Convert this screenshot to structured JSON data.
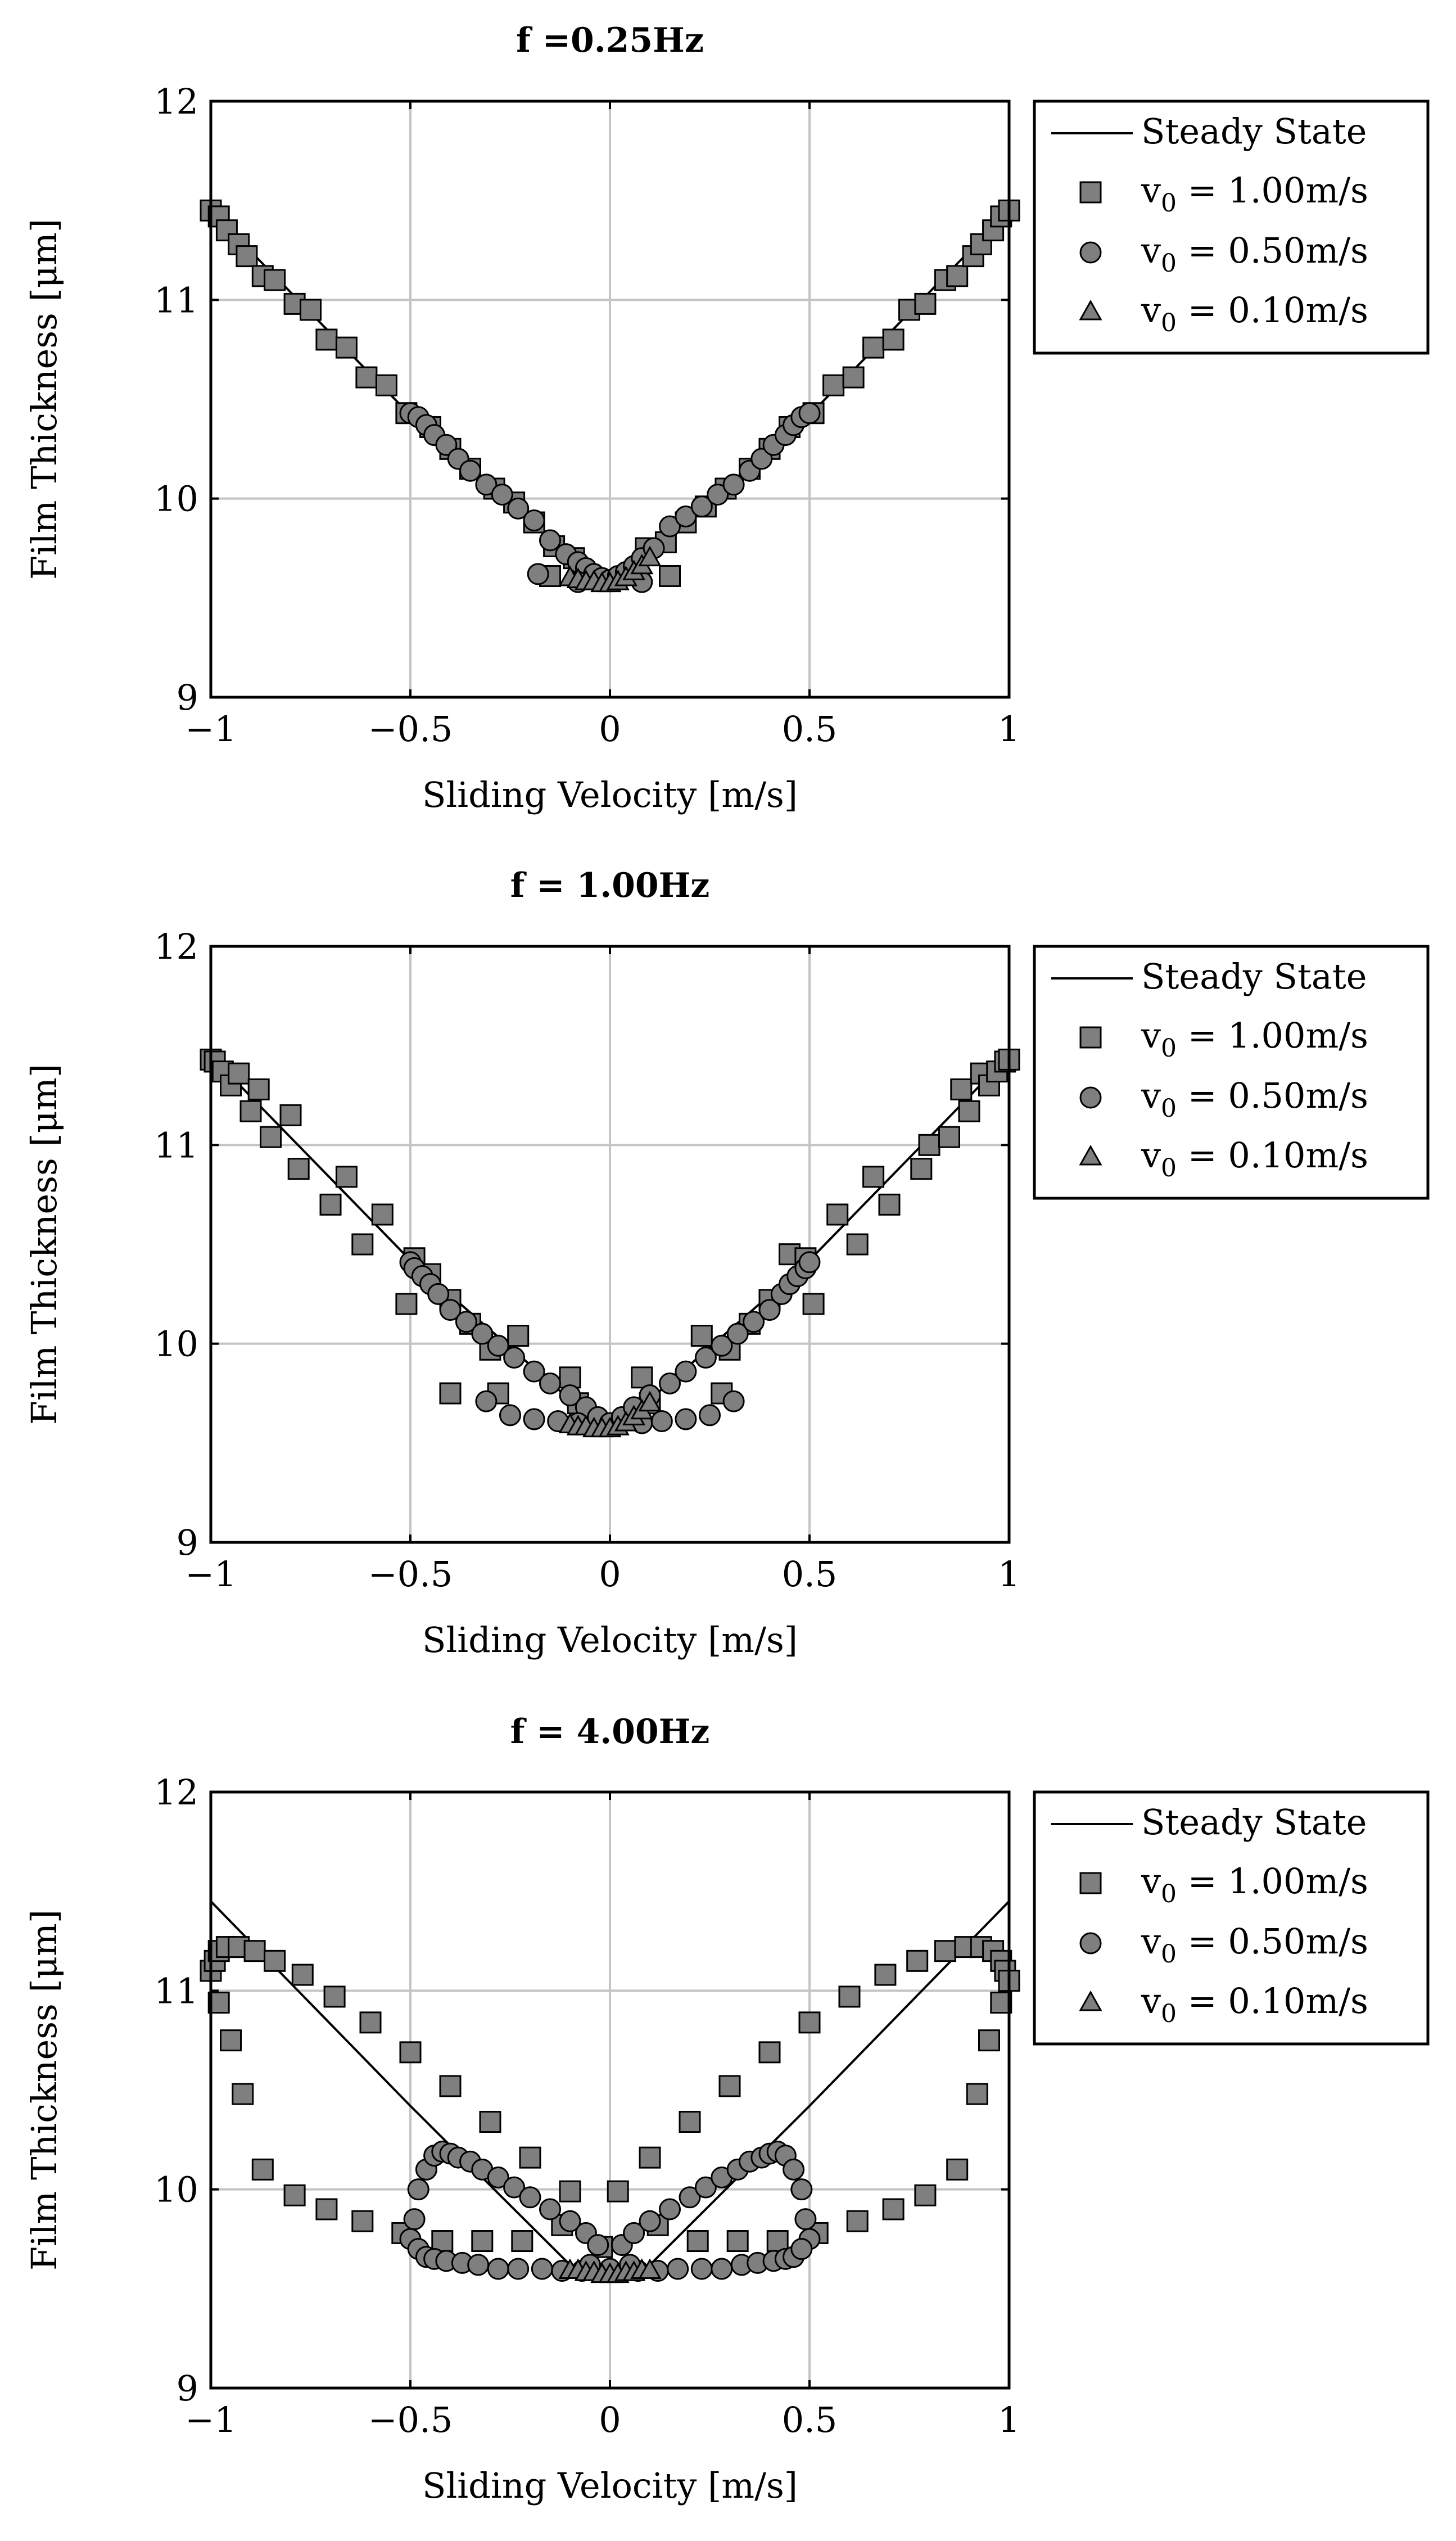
{
  "chart_data": [
    {
      "type": "scatter",
      "title": "f =0.25Hz",
      "xlabel": "Sliding Velocity [m/s]",
      "ylabel": "Film Thickness [μm]",
      "xlim": [
        -1,
        1
      ],
      "ylim": [
        9,
        12
      ],
      "xticks": [
        -1,
        -0.5,
        0,
        0.5,
        1
      ],
      "xtick_labels": [
        "−1",
        "−0.5",
        "0",
        "0.5",
        "1"
      ],
      "yticks": [
        9,
        10,
        11,
        12
      ],
      "ytick_labels": [
        "9",
        "10",
        "11",
        "12"
      ],
      "grid": true,
      "legend_position": "outside-top-right",
      "legend_labels": [
        "Steady State",
        "v₀ = 1.00m/s",
        "v₀ = 0.50m/s",
        "v₀ = 0.10m/s"
      ],
      "series": [
        {
          "name": "Steady State",
          "kind": "line",
          "x": [
            -1,
            -0.5,
            -0.05,
            0,
            0.05,
            0.5,
            1
          ],
          "y": [
            11.45,
            10.42,
            9.63,
            9.57,
            9.63,
            10.42,
            11.45
          ]
        },
        {
          "name": "v0 = 1.00m/s",
          "kind": "square",
          "x": [
            -1.0,
            -0.98,
            -0.96,
            -0.93,
            -0.91,
            -0.87,
            -0.84,
            -0.79,
            -0.75,
            -0.71,
            -0.66,
            -0.61,
            -0.56,
            -0.51,
            -0.45,
            -0.4,
            -0.35,
            -0.29,
            -0.24,
            -0.19,
            -0.14,
            -0.09,
            0.09,
            0.14,
            0.19,
            0.24,
            0.29,
            0.35,
            0.4,
            0.45,
            0.51,
            0.56,
            0.61,
            0.66,
            0.71,
            0.75,
            0.79,
            0.84,
            0.87,
            0.91,
            0.93,
            0.96,
            0.98,
            1.0,
            -0.15,
            0.15
          ],
          "y": [
            11.45,
            11.42,
            11.35,
            11.28,
            11.22,
            11.12,
            11.1,
            10.98,
            10.95,
            10.8,
            10.76,
            10.61,
            10.57,
            10.43,
            10.36,
            10.25,
            10.15,
            10.05,
            9.98,
            9.88,
            9.76,
            9.7,
            9.75,
            9.78,
            9.88,
            9.96,
            10.05,
            10.15,
            10.25,
            10.36,
            10.43,
            10.57,
            10.61,
            10.76,
            10.8,
            10.95,
            10.98,
            11.1,
            11.12,
            11.22,
            11.28,
            11.35,
            11.42,
            11.45,
            9.61,
            9.61
          ]
        },
        {
          "name": "v0 = 0.50m/s",
          "kind": "circle",
          "x": [
            -0.5,
            -0.48,
            -0.46,
            -0.44,
            -0.41,
            -0.38,
            -0.35,
            -0.31,
            -0.27,
            -0.23,
            -0.19,
            -0.15,
            -0.11,
            -0.08,
            -0.06,
            -0.04,
            -0.02,
            0.0,
            0.02,
            0.04,
            0.06,
            0.08,
            0.11,
            0.15,
            0.19,
            0.23,
            0.27,
            0.31,
            0.35,
            0.38,
            0.41,
            0.44,
            0.46,
            0.48,
            0.5,
            -0.18,
            -0.08,
            0.08
          ],
          "y": [
            10.43,
            10.41,
            10.37,
            10.32,
            10.27,
            10.2,
            10.14,
            10.07,
            10.02,
            9.95,
            9.89,
            9.79,
            9.72,
            9.68,
            9.65,
            9.62,
            9.6,
            9.59,
            9.61,
            9.63,
            9.66,
            9.7,
            9.75,
            9.86,
            9.91,
            9.96,
            10.02,
            10.07,
            10.14,
            10.2,
            10.27,
            10.32,
            10.37,
            10.41,
            10.43,
            9.62,
            9.58,
            9.58
          ]
        },
        {
          "name": "v0 = 0.10m/s",
          "kind": "triangle",
          "x": [
            -0.1,
            -0.08,
            -0.06,
            -0.04,
            -0.02,
            0.0,
            0.02,
            0.04,
            0.06,
            0.08,
            0.1
          ],
          "y": [
            9.6,
            9.59,
            9.58,
            9.58,
            9.57,
            9.57,
            9.58,
            9.6,
            9.63,
            9.66,
            9.7
          ]
        }
      ]
    },
    {
      "type": "scatter",
      "title": "f = 1.00Hz",
      "xlabel": "Sliding Velocity [m/s]",
      "ylabel": "Film Thickness [μm]",
      "xlim": [
        -1,
        1
      ],
      "ylim": [
        9,
        12
      ],
      "xticks": [
        -1,
        -0.5,
        0,
        0.5,
        1
      ],
      "xtick_labels": [
        "−1",
        "−0.5",
        "0",
        "0.5",
        "1"
      ],
      "yticks": [
        9,
        10,
        11,
        12
      ],
      "ytick_labels": [
        "9",
        "10",
        "11",
        "12"
      ],
      "grid": true,
      "legend_position": "outside-top-right",
      "legend_labels": [
        "Steady State",
        "v₀ = 1.00m/s",
        "v₀ = 0.50m/s",
        "v₀ = 0.10m/s"
      ],
      "series": [
        {
          "name": "Steady State",
          "kind": "line",
          "x": [
            -1,
            -0.5,
            -0.05,
            0,
            0.05,
            0.5,
            1
          ],
          "y": [
            11.45,
            10.42,
            9.63,
            9.57,
            9.63,
            10.42,
            11.45
          ]
        },
        {
          "name": "v0 = 1.00m/s",
          "kind": "square",
          "x": [
            -1.0,
            -0.99,
            -0.97,
            -0.95,
            -0.93,
            -0.9,
            -0.88,
            -0.85,
            -0.8,
            -0.78,
            -0.7,
            -0.66,
            -0.62,
            -0.57,
            -0.51,
            -0.49,
            -0.45,
            -0.4,
            -0.35,
            -0.3,
            -0.23,
            -0.1,
            -0.08,
            0.08,
            0.1,
            0.23,
            0.3,
            0.35,
            0.4,
            0.45,
            0.49,
            0.51,
            0.57,
            0.62,
            0.66,
            0.7,
            0.78,
            0.8,
            0.85,
            0.88,
            0.9,
            0.93,
            0.95,
            0.97,
            0.99,
            1.0,
            -0.4,
            -0.28,
            0.28
          ],
          "y": [
            11.43,
            11.42,
            11.37,
            11.3,
            11.36,
            11.17,
            11.28,
            11.04,
            11.15,
            10.88,
            10.7,
            10.84,
            10.5,
            10.65,
            10.2,
            10.43,
            10.35,
            10.22,
            10.1,
            9.97,
            10.04,
            9.83,
            9.7,
            9.83,
            9.7,
            10.04,
            9.97,
            10.1,
            10.22,
            10.45,
            10.43,
            10.2,
            10.65,
            10.5,
            10.84,
            10.7,
            10.88,
            11.0,
            11.04,
            11.28,
            11.17,
            11.36,
            11.3,
            11.37,
            11.42,
            11.43,
            9.75,
            9.75,
            9.75
          ]
        },
        {
          "name": "v0 = 0.50m/s",
          "kind": "circle",
          "x": [
            -0.5,
            -0.49,
            -0.47,
            -0.45,
            -0.43,
            -0.4,
            -0.36,
            -0.32,
            -0.28,
            -0.24,
            -0.19,
            -0.15,
            -0.1,
            -0.06,
            -0.03,
            0.0,
            0.03,
            0.06,
            0.1,
            0.15,
            0.19,
            0.24,
            0.28,
            0.32,
            0.36,
            0.4,
            0.43,
            0.45,
            0.47,
            0.49,
            0.5,
            -0.31,
            -0.25,
            -0.19,
            -0.13,
            -0.08,
            0.08,
            0.13,
            0.19,
            0.25,
            0.31
          ],
          "y": [
            10.41,
            10.38,
            10.34,
            10.3,
            10.25,
            10.17,
            10.11,
            10.05,
            9.99,
            9.93,
            9.86,
            9.8,
            9.74,
            9.68,
            9.63,
            9.6,
            9.63,
            9.68,
            9.74,
            9.8,
            9.86,
            9.93,
            9.99,
            10.05,
            10.11,
            10.17,
            10.25,
            10.3,
            10.34,
            10.38,
            10.41,
            9.71,
            9.64,
            9.62,
            9.61,
            9.6,
            9.6,
            9.61,
            9.62,
            9.64,
            9.71
          ]
        },
        {
          "name": "v0 = 0.10m/s",
          "kind": "triangle",
          "x": [
            -0.1,
            -0.08,
            -0.06,
            -0.04,
            -0.02,
            0.0,
            0.02,
            0.04,
            0.06,
            0.08,
            0.1
          ],
          "y": [
            9.59,
            9.58,
            9.58,
            9.57,
            9.57,
            9.57,
            9.58,
            9.6,
            9.63,
            9.66,
            9.7
          ]
        }
      ]
    },
    {
      "type": "scatter",
      "title": "f = 4.00Hz",
      "xlabel": "Sliding Velocity [m/s]",
      "ylabel": "Film Thickness [μm]",
      "xlim": [
        -1,
        1
      ],
      "ylim": [
        9,
        12
      ],
      "xticks": [
        -1,
        -0.5,
        0,
        0.5,
        1
      ],
      "xtick_labels": [
        "−1",
        "−0.5",
        "0",
        "0.5",
        "1"
      ],
      "yticks": [
        9,
        10,
        11,
        12
      ],
      "ytick_labels": [
        "9",
        "10",
        "11",
        "12"
      ],
      "grid": true,
      "legend_position": "outside-top-right",
      "legend_labels": [
        "Steady State",
        "v₀ = 1.00m/s",
        "v₀ = 0.50m/s",
        "v₀ = 0.10m/s"
      ],
      "series": [
        {
          "name": "Steady State",
          "kind": "line",
          "x": [
            -1,
            -0.5,
            -0.1,
            0,
            0.1,
            0.5,
            1
          ],
          "y": [
            11.45,
            10.42,
            9.62,
            9.57,
            9.62,
            10.42,
            11.45
          ]
        },
        {
          "name": "v0 = 1.00m/s",
          "kind": "square",
          "x": [
            -1.0,
            -0.99,
            -0.98,
            -0.96,
            -0.93,
            -0.89,
            -0.84,
            -0.77,
            -0.69,
            -0.6,
            -0.5,
            -0.4,
            -0.3,
            -0.2,
            -0.1,
            0.02,
            0.1,
            0.2,
            0.3,
            0.4,
            0.5,
            0.6,
            0.69,
            0.77,
            0.84,
            0.89,
            0.93,
            0.96,
            0.98,
            0.99,
            1.0,
            -0.98,
            -0.95,
            -0.92,
            -0.87,
            -0.79,
            -0.71,
            -0.62,
            -0.52,
            -0.42,
            -0.32,
            -0.22,
            -0.12,
            -0.02,
            0.12,
            0.22,
            0.32,
            0.42,
            0.52,
            0.62,
            0.71,
            0.79,
            0.87,
            0.92,
            0.95,
            0.98
          ],
          "y": [
            11.1,
            11.15,
            11.2,
            11.22,
            11.22,
            11.2,
            11.15,
            11.08,
            10.97,
            10.84,
            10.69,
            10.52,
            10.34,
            10.16,
            9.99,
            9.99,
            10.16,
            10.34,
            10.52,
            10.69,
            10.84,
            10.97,
            11.08,
            11.15,
            11.2,
            11.22,
            11.22,
            11.2,
            11.15,
            11.1,
            11.05,
            10.94,
            10.75,
            10.48,
            10.1,
            9.97,
            9.9,
            9.84,
            9.78,
            9.74,
            9.74,
            9.74,
            9.82,
            9.71,
            9.82,
            9.74,
            9.74,
            9.74,
            9.78,
            9.84,
            9.9,
            9.97,
            10.1,
            10.48,
            10.75,
            10.94
          ]
        },
        {
          "name": "v0 = 0.50m/s",
          "kind": "circle",
          "x": [
            -0.5,
            -0.49,
            -0.48,
            -0.46,
            -0.44,
            -0.42,
            -0.4,
            -0.38,
            -0.35,
            -0.32,
            -0.28,
            -0.24,
            -0.2,
            -0.15,
            -0.1,
            -0.06,
            -0.03,
            0.0,
            0.03,
            0.06,
            0.1,
            0.15,
            0.2,
            0.24,
            0.28,
            0.32,
            0.35,
            0.38,
            0.4,
            0.42,
            0.44,
            0.46,
            0.48,
            0.49,
            0.5,
            -0.48,
            -0.46,
            -0.44,
            -0.41,
            -0.37,
            -0.33,
            -0.28,
            -0.23,
            -0.17,
            -0.12,
            -0.07,
            0.07,
            0.12,
            0.17,
            0.23,
            0.28,
            0.33,
            0.37,
            0.41,
            0.44,
            0.46,
            0.48,
            -0.05,
            0.05
          ],
          "y": [
            9.75,
            9.85,
            10.0,
            10.1,
            10.17,
            10.19,
            10.18,
            10.16,
            10.14,
            10.1,
            10.06,
            10.01,
            9.96,
            9.9,
            9.84,
            9.78,
            9.72,
            9.6,
            9.72,
            9.78,
            9.84,
            9.9,
            9.96,
            10.01,
            10.06,
            10.1,
            10.14,
            10.16,
            10.18,
            10.19,
            10.17,
            10.1,
            10.0,
            9.85,
            9.75,
            9.7,
            9.66,
            9.65,
            9.64,
            9.63,
            9.62,
            9.6,
            9.6,
            9.6,
            9.59,
            9.59,
            9.59,
            9.59,
            9.6,
            9.6,
            9.6,
            9.62,
            9.63,
            9.64,
            9.65,
            9.66,
            9.7,
            9.62,
            9.62
          ]
        },
        {
          "name": "v0 = 0.10m/s",
          "kind": "triangle",
          "x": [
            -0.1,
            -0.08,
            -0.06,
            -0.04,
            -0.02,
            0.0,
            0.02,
            0.04,
            0.06,
            0.08,
            0.1
          ],
          "y": [
            9.59,
            9.59,
            9.58,
            9.58,
            9.57,
            9.57,
            9.57,
            9.58,
            9.58,
            9.59,
            9.59
          ]
        }
      ]
    }
  ]
}
